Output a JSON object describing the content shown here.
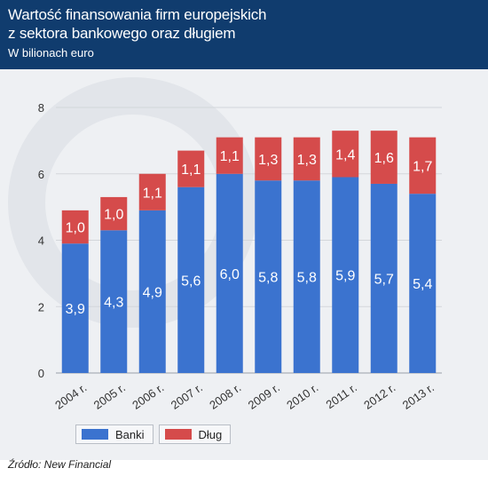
{
  "header": {
    "title_line1": "Wartość finansowania firm europejskich",
    "title_line2": "z sektora bankowego oraz długiem",
    "subtitle": "W bilionach euro"
  },
  "colors": {
    "header_bg": "#103c6e",
    "chart_bg": "#eef0f3",
    "banki": "#3b73cf",
    "dlug": "#d54b4b",
    "grid": "#d3d6db",
    "axis_text": "#333333"
  },
  "legend": {
    "banki_label": "Banki",
    "dlug_label": "Dług"
  },
  "source": "Źródło: New Financial",
  "chart_data": {
    "type": "bar",
    "stacked": true,
    "categories": [
      "2004 r.",
      "2005 r.",
      "2006 r.",
      "2007 r.",
      "2008 r.",
      "2009 r.",
      "2010 r.",
      "2011 r.",
      "2012 r.",
      "2013 r."
    ],
    "series": [
      {
        "name": "Banki",
        "color": "#3b73cf",
        "values": [
          3.9,
          4.3,
          4.9,
          5.6,
          6.0,
          5.8,
          5.8,
          5.9,
          5.7,
          5.4
        ],
        "labels": [
          "3,9",
          "4,3",
          "4,9",
          "5,6",
          "6,0",
          "5,8",
          "5,8",
          "5,9",
          "5,7",
          "5,4"
        ]
      },
      {
        "name": "Dług",
        "color": "#d54b4b",
        "values": [
          1.0,
          1.0,
          1.1,
          1.1,
          1.1,
          1.3,
          1.3,
          1.4,
          1.6,
          1.7
        ],
        "labels": [
          "1,0",
          "1,0",
          "1,1",
          "1,1",
          "1,1",
          "1,3",
          "1,3",
          "1,4",
          "1,6",
          "1,7"
        ]
      }
    ],
    "ylim": [
      0,
      8
    ],
    "yticks": [
      0,
      2,
      4,
      6,
      8
    ],
    "grid": true,
    "legend_position": "bottom-left"
  }
}
